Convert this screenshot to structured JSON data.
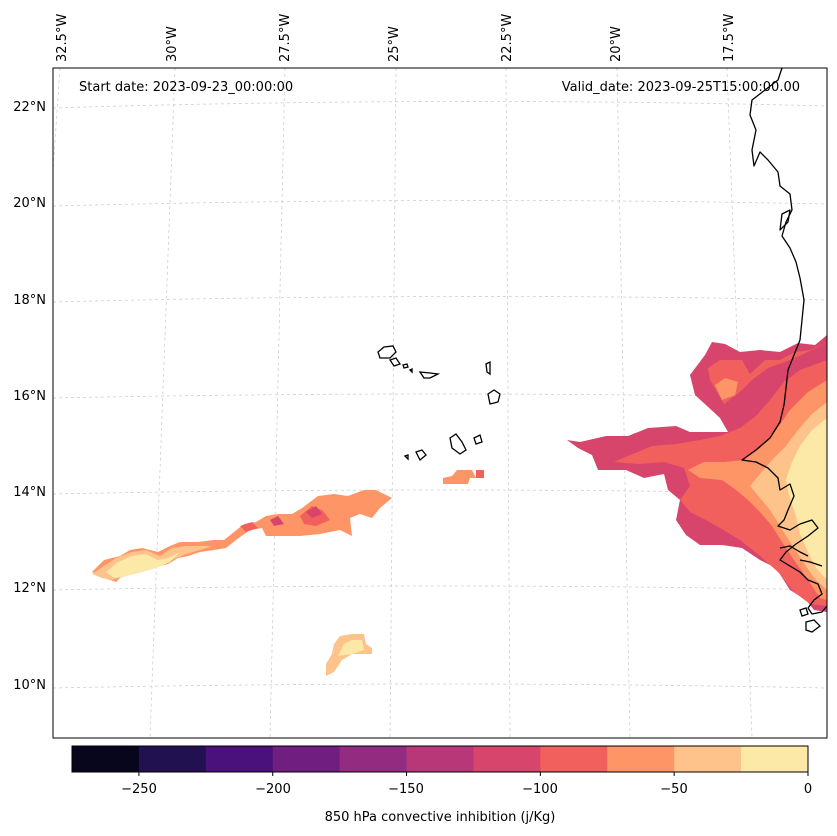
{
  "map": {
    "start_label": "Start date: 2023-09-23_00:00:00",
    "valid_label": "Valid_date: 2023-09-25T15:00:00.00",
    "lon_labels": [
      "32.5°W",
      "30°W",
      "27.5°W",
      "25°W",
      "22.5°W",
      "20°W",
      "17.5°W"
    ],
    "lat_labels": [
      "22°N",
      "20°N",
      "18°N",
      "16°N",
      "14°N",
      "12°N",
      "10°N"
    ]
  },
  "colorbar": {
    "title": "850 hPa convective inhibition (j/Kg)",
    "tick_labels": [
      "−250",
      "−200",
      "−150",
      "−100",
      "−50",
      "0"
    ],
    "min": -275,
    "max": 0,
    "levels": [
      {
        "range": [
          -275,
          -250
        ],
        "color": "#07061c"
      },
      {
        "range": [
          -250,
          -225
        ],
        "color": "#221150"
      },
      {
        "range": [
          -225,
          -200
        ],
        "color": "#4a117c"
      },
      {
        "range": [
          -200,
          -175
        ],
        "color": "#701f81"
      },
      {
        "range": [
          -175,
          -150
        ],
        "color": "#932b80"
      },
      {
        "range": [
          -150,
          -125
        ],
        "color": "#b73779"
      },
      {
        "range": [
          -125,
          -100
        ],
        "color": "#d8456c"
      },
      {
        "range": [
          -100,
          -75
        ],
        "color": "#f1605d"
      },
      {
        "range": [
          -75,
          -50
        ],
        "color": "#fd9567"
      },
      {
        "range": [
          -50,
          -25
        ],
        "color": "#fec38b"
      },
      {
        "range": [
          -25,
          0
        ],
        "color": "#fde9a7"
      }
    ]
  }
}
